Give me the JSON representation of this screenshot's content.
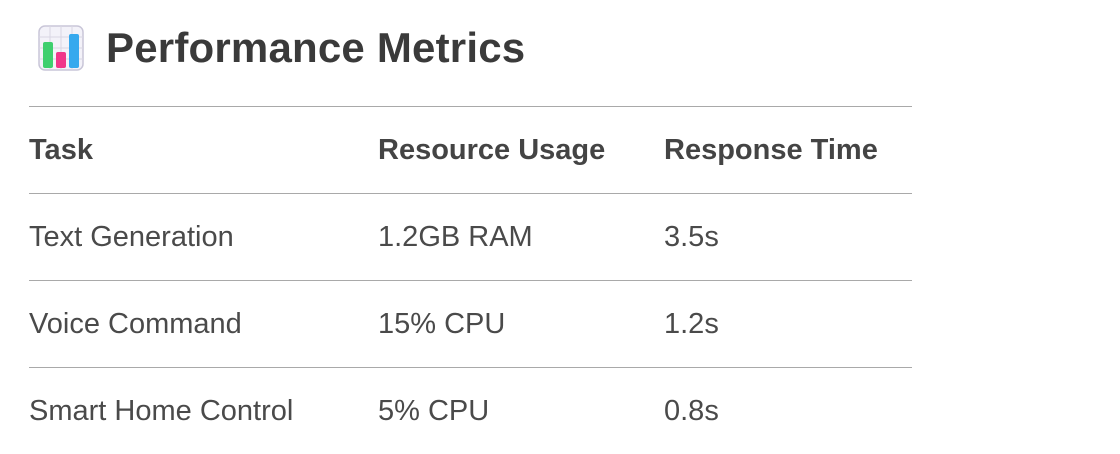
{
  "header": {
    "icon": "bar-chart-icon",
    "title": "Performance Metrics"
  },
  "table": {
    "columns": [
      "Task",
      "Resource Usage",
      "Response Time"
    ],
    "rows": [
      [
        "Text Generation",
        "1.2GB RAM",
        "3.5s"
      ],
      [
        "Voice Command",
        "15% CPU",
        "1.2s"
      ],
      [
        "Smart Home Control",
        "5% CPU",
        "0.8s"
      ]
    ]
  },
  "colors": {
    "text": "#3a3a3a",
    "divider": "#a9a9a9",
    "icon_green": "#3ecf6e",
    "icon_pink": "#f0368a",
    "icon_blue": "#36a9ee"
  }
}
